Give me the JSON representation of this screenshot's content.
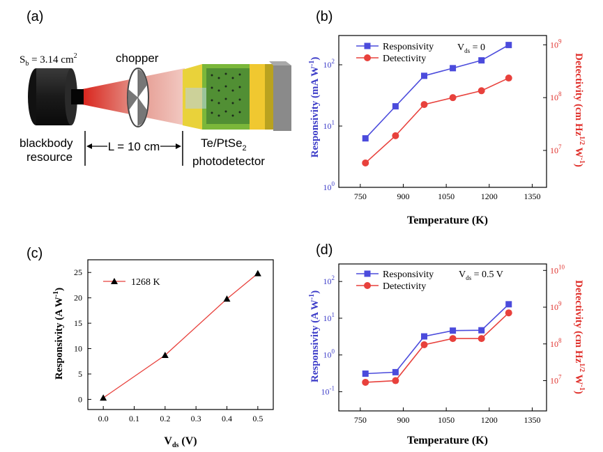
{
  "panel_a": {
    "label": "(a)",
    "source_area": "S",
    "source_area_sub": "b",
    "source_area_value": " = 3.14 cm",
    "source_area_sup": "2",
    "chopper_label": "chopper",
    "blackbody_line1": "blackbody",
    "blackbody_line2": "resource",
    "distance_label": "L = 10 cm",
    "detector_line1": "Te/PtSe",
    "detector_line1_sub": "2",
    "detector_line2": "photodetector"
  },
  "chart_data": [
    {
      "id": "b",
      "panel_label": "(b)",
      "type": "line",
      "xlabel": "Temperature (K)",
      "ylabel_left": "Responsivity (mA W",
      "ylabel_left_sup": "-1",
      "ylabel_left_end": ")",
      "ylabel_right": "Detectivity (cm Hz",
      "ylabel_right_sup1": "1/2",
      "ylabel_right_mid": " W",
      "ylabel_right_sup2": "-1",
      "ylabel_right_end": ")",
      "annotation": "V",
      "annotation_sub": "ds",
      "annotation_value": " = 0",
      "x_ticks": [
        750,
        900,
        1050,
        1200,
        1350
      ],
      "xlim": [
        675,
        1400
      ],
      "left_scale": "log",
      "left_ylim": [
        1,
        300
      ],
      "left_ticks": [
        {
          "base": "10",
          "exp": "0",
          "value": 1
        },
        {
          "base": "10",
          "exp": "1",
          "value": 10
        },
        {
          "base": "10",
          "exp": "2",
          "value": 100
        }
      ],
      "right_scale": "log",
      "right_ylim": [
        2000000,
        1500000000
      ],
      "right_ticks": [
        {
          "base": "10",
          "exp": "7",
          "value": 10000000
        },
        {
          "base": "10",
          "exp": "8",
          "value": 100000000
        },
        {
          "base": "10",
          "exp": "9",
          "value": 1000000000
        }
      ],
      "x": [
        768,
        873,
        973,
        1073,
        1173,
        1268
      ],
      "series": [
        {
          "name": "Responsivity",
          "axis": "left",
          "marker": "square",
          "color": "#4b4bdc",
          "values": [
            6.3,
            21,
            66,
            88,
            118,
            210
          ]
        },
        {
          "name": "Detectivity",
          "axis": "right",
          "marker": "circle",
          "color": "#e8413c",
          "values": [
            5800000,
            19000000,
            74000000,
            100000000,
            135000000,
            235000000
          ]
        }
      ]
    },
    {
      "id": "c",
      "panel_label": "(c)",
      "type": "line",
      "xlabel": "V",
      "xlabel_sub": "ds",
      "xlabel_end": " (V)",
      "ylabel_left": "Responsivity (A W",
      "ylabel_left_sup": "-1",
      "ylabel_left_end": ")",
      "x_ticks": [
        "0.0",
        "0.1",
        "0.2",
        "0.3",
        "0.4",
        "0.5"
      ],
      "xlim": [
        -0.05,
        0.55
      ],
      "left_ticks": [
        "0",
        "5",
        "10",
        "15",
        "20",
        "25"
      ],
      "left_ylim": [
        -2,
        27.5
      ],
      "x": [
        0.0,
        0.2,
        0.4,
        0.5
      ],
      "series": [
        {
          "name": "1268 K",
          "axis": "left",
          "marker": "triangle",
          "color": "#e8413c",
          "marker_color": "#000000",
          "values": [
            0.3,
            8.7,
            19.8,
            24.8
          ]
        }
      ]
    },
    {
      "id": "d",
      "panel_label": "(d)",
      "type": "line",
      "xlabel": "Temperature (K)",
      "ylabel_left": "Responsivity (A W",
      "ylabel_left_sup": "-1",
      "ylabel_left_end": ")",
      "ylabel_right": "Detectivity (cm Hz",
      "ylabel_right_sup1": "1/2",
      "ylabel_right_mid": " W",
      "ylabel_right_sup2": "-1",
      "ylabel_right_end": ")",
      "annotation": "V",
      "annotation_sub": "ds",
      "annotation_value": " = 0.5 V",
      "x_ticks": [
        750,
        900,
        1050,
        1200,
        1350
      ],
      "xlim": [
        675,
        1400
      ],
      "left_scale": "log",
      "left_ylim": [
        0.03,
        300
      ],
      "left_ticks": [
        {
          "base": "10",
          "exp": "-1",
          "value": 0.1
        },
        {
          "base": "10",
          "exp": "0",
          "value": 1
        },
        {
          "base": "10",
          "exp": "1",
          "value": 10
        },
        {
          "base": "10",
          "exp": "2",
          "value": 100
        }
      ],
      "right_scale": "log",
      "right_ylim": [
        1500000,
        15000000000
      ],
      "right_ticks": [
        {
          "base": "10",
          "exp": "7",
          "value": 10000000
        },
        {
          "base": "10",
          "exp": "8",
          "value": 100000000
        },
        {
          "base": "10",
          "exp": "9",
          "value": 1000000000
        },
        {
          "base": "10",
          "exp": "10",
          "value": 10000000000
        }
      ],
      "x": [
        768,
        873,
        973,
        1073,
        1173,
        1268
      ],
      "series": [
        {
          "name": "Responsivity",
          "axis": "left",
          "marker": "square",
          "color": "#4b4bdc",
          "values": [
            0.31,
            0.34,
            3.2,
            4.6,
            4.7,
            24
          ]
        },
        {
          "name": "Detectivity",
          "axis": "right",
          "marker": "circle",
          "color": "#e8413c",
          "values": [
            9000000,
            10000000,
            95000000,
            140000000,
            140000000,
            700000000
          ]
        }
      ]
    }
  ]
}
